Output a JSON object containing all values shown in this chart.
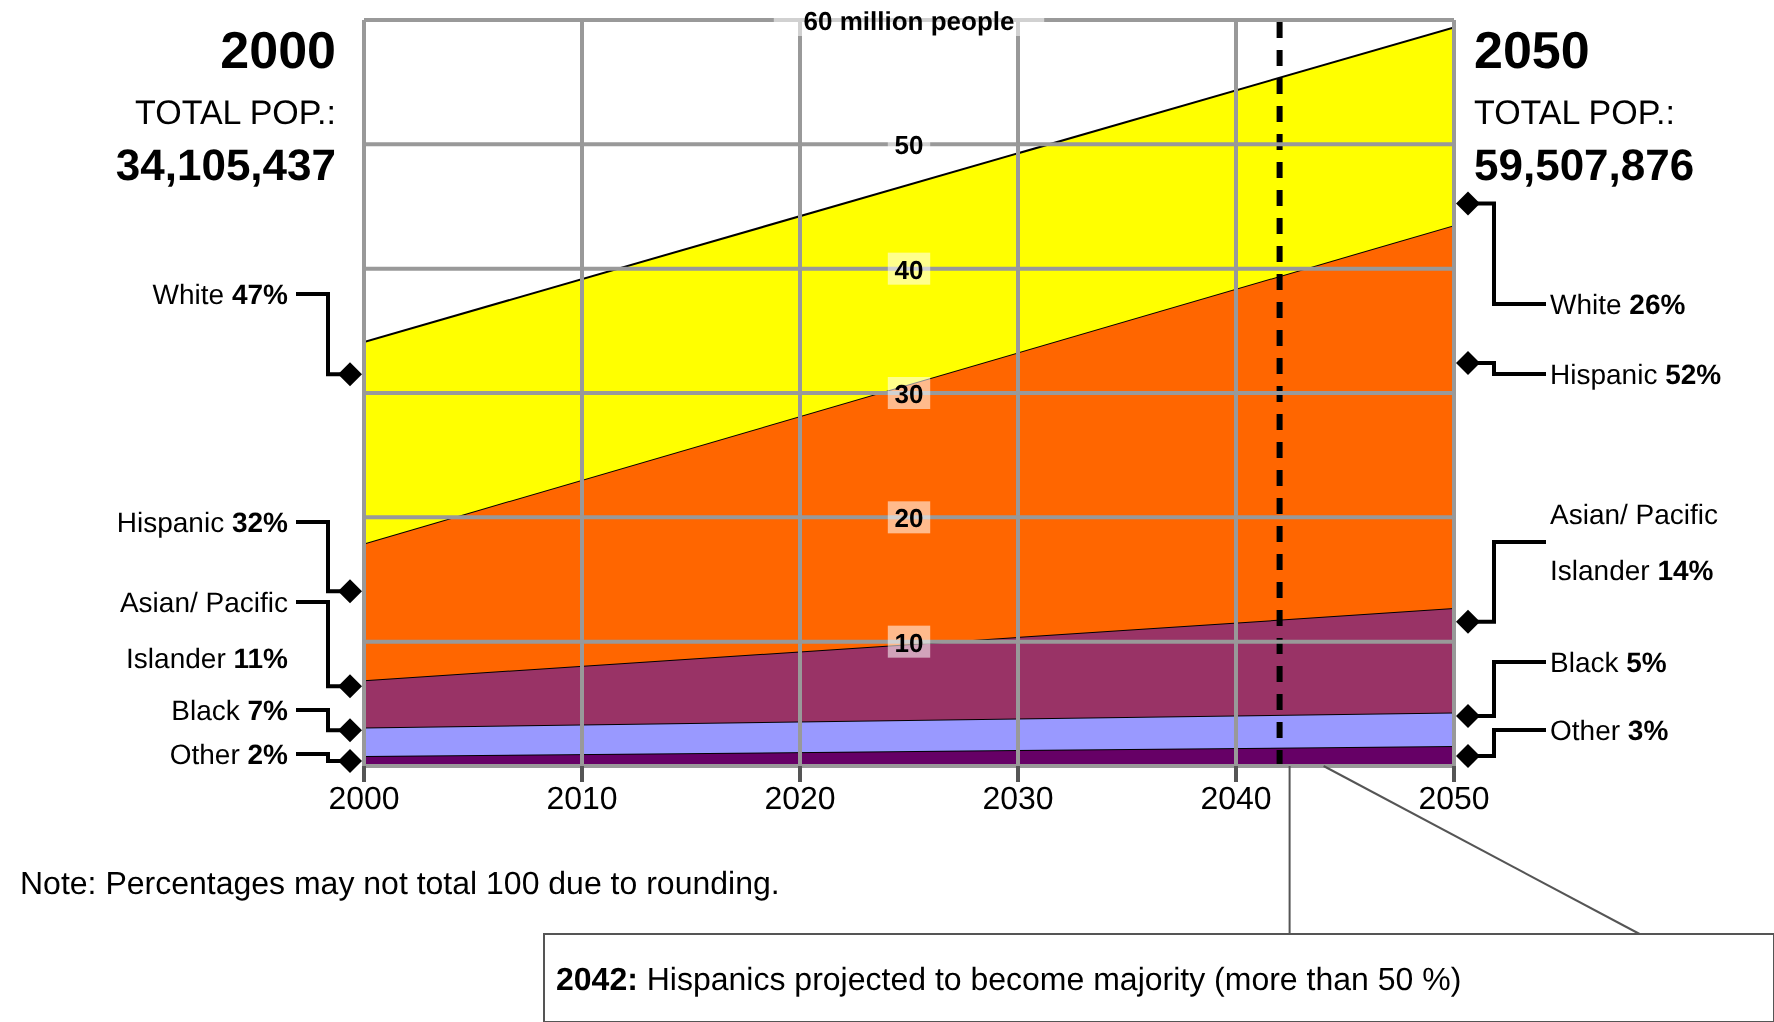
{
  "chart_data": {
    "type": "area",
    "stacked": true,
    "x": [
      2000,
      2050
    ],
    "xlim": [
      2000,
      2050
    ],
    "xticks": [
      2000,
      2010,
      2020,
      2030,
      2040,
      2050
    ],
    "ylim": [
      0,
      60
    ],
    "yticks": [
      10,
      20,
      30,
      40,
      50,
      {
        "value": 60,
        "label": "60 million people"
      }
    ],
    "grid": true,
    "legend": "left",
    "series": [
      {
        "name": "Other",
        "color": "#660066",
        "values": [
          0.8,
          1.6
        ]
      },
      {
        "name": "Black",
        "color": "#9999ff",
        "values": [
          2.3,
          2.7
        ]
      },
      {
        "name": "Asian/ Pacific Islander",
        "color": "#993366",
        "values": [
          3.8,
          8.4
        ]
      },
      {
        "name": "Hispanic",
        "color": "#ff6600",
        "values": [
          11.0,
          30.8
        ]
      },
      {
        "name": "White",
        "color": "#ffff00",
        "values": [
          16.2,
          15.9
        ]
      }
    ],
    "ref_lines": [
      {
        "axis": "x",
        "value": 2042,
        "line_style": "dashed",
        "color": "#000000",
        "label": "2042: Hispanics projected to become majority (more than 50 %)"
      }
    ],
    "annotations": [
      "2000",
      "TOTAL POP.:",
      "34,105,437",
      "2050",
      "TOTAL POP.:",
      "59,507,876",
      "Note: Percentages may not total 100 due to rounding.",
      "2%",
      "7%",
      "11%",
      "32%",
      "47%",
      "3%",
      "5%",
      "14%",
      "52%",
      "26%"
    ]
  }
}
